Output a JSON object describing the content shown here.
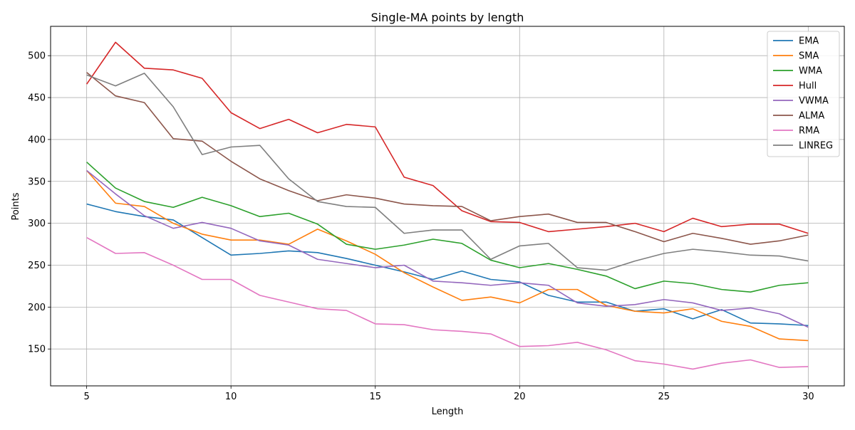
{
  "chart_data": {
    "type": "line",
    "title": "Single-MA points by length",
    "xlabel": "Length",
    "ylabel": "Points",
    "xlim": [
      3.75,
      31.25
    ],
    "ylim": [
      106,
      535
    ],
    "xticks": [
      5,
      10,
      15,
      20,
      25,
      30
    ],
    "yticks": [
      150,
      200,
      250,
      300,
      350,
      400,
      450,
      500
    ],
    "grid": true,
    "legend_position": "top-right",
    "x": [
      5,
      6,
      7,
      8,
      9,
      10,
      11,
      12,
      13,
      14,
      15,
      16,
      17,
      18,
      19,
      20,
      21,
      22,
      23,
      24,
      25,
      26,
      27,
      28,
      29,
      30
    ],
    "series": [
      {
        "name": "EMA",
        "color": "#1f77b4",
        "values": [
          323,
          314,
          308,
          304,
          283,
          262,
          264,
          267,
          265,
          258,
          250,
          242,
          233,
          243,
          233,
          230,
          214,
          206,
          206,
          195,
          198,
          186,
          197,
          181,
          180,
          178
        ]
      },
      {
        "name": "SMA",
        "color": "#ff7f0e",
        "values": [
          363,
          324,
          320,
          300,
          287,
          280,
          280,
          275,
          293,
          279,
          263,
          241,
          224,
          208,
          212,
          205,
          221,
          221,
          202,
          195,
          193,
          198,
          183,
          177,
          162,
          160
        ]
      },
      {
        "name": "WMA",
        "color": "#2ca02c",
        "values": [
          373,
          342,
          326,
          319,
          331,
          321,
          308,
          312,
          299,
          275,
          269,
          274,
          281,
          276,
          256,
          247,
          252,
          245,
          237,
          222,
          231,
          228,
          221,
          218,
          226,
          229
        ]
      },
      {
        "name": "Hull",
        "color": "#d62728",
        "values": [
          466,
          516,
          485,
          483,
          473,
          432,
          413,
          424,
          408,
          418,
          415,
          355,
          345,
          315,
          302,
          301,
          290,
          293,
          296,
          300,
          290,
          306,
          296,
          299,
          299,
          288
        ]
      },
      {
        "name": "VWMA",
        "color": "#9467bd",
        "values": [
          363,
          335,
          309,
          294,
          301,
          294,
          279,
          274,
          257,
          252,
          247,
          250,
          231,
          229,
          226,
          229,
          226,
          205,
          201,
          203,
          209,
          205,
          196,
          199,
          192,
          176
        ]
      },
      {
        "name": "ALMA",
        "color": "#8c564b",
        "values": [
          480,
          452,
          444,
          401,
          398,
          374,
          353,
          339,
          327,
          334,
          330,
          323,
          321,
          320,
          303,
          308,
          311,
          301,
          301,
          290,
          278,
          288,
          282,
          275,
          279,
          286
        ]
      },
      {
        "name": "RMA",
        "color": "#e377c2",
        "values": [
          283,
          264,
          265,
          250,
          233,
          233,
          214,
          206,
          198,
          196,
          180,
          179,
          173,
          171,
          168,
          153,
          154,
          158,
          149,
          136,
          132,
          126,
          133,
          137,
          128,
          129
        ]
      },
      {
        "name": "LINREG",
        "color": "#7f7f7f",
        "values": [
          477,
          464,
          479,
          439,
          382,
          391,
          393,
          353,
          326,
          320,
          319,
          288,
          292,
          292,
          257,
          273,
          276,
          247,
          244,
          255,
          264,
          269,
          266,
          262,
          261,
          255
        ]
      }
    ]
  }
}
